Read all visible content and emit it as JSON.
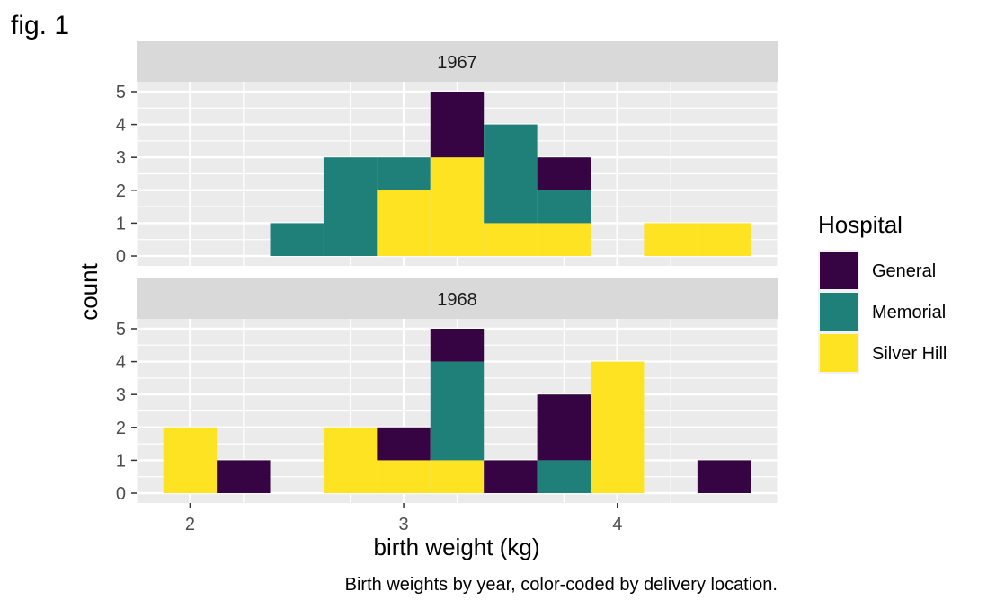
{
  "figure_label": "fig. 1",
  "caption": "Birth weights by year, color-coded by delivery location.",
  "chart_data": {
    "type": "bar",
    "subtype": "stacked-histogram-faceted",
    "xlabel": "birth weight (kg)",
    "ylabel": "count",
    "xlim": [
      1.75,
      4.75
    ],
    "ylim": [
      -0.3,
      5.3
    ],
    "x_ticks": [
      2,
      3,
      4
    ],
    "y_ticks": [
      0,
      1,
      2,
      3,
      4,
      5
    ],
    "bin_width": 0.25,
    "bin_starts": [
      1.875,
      2.125,
      2.375,
      2.625,
      2.875,
      3.125,
      3.375,
      3.625,
      3.875,
      4.125,
      4.375
    ],
    "stack_order": [
      "Silver Hill",
      "Memorial",
      "General"
    ],
    "legend": {
      "title": "Hospital",
      "position": "right",
      "entries": [
        {
          "name": "General",
          "color": "#360343"
        },
        {
          "name": "Memorial",
          "color": "#1f7f79"
        },
        {
          "name": "Silver Hill",
          "color": "#fde321"
        }
      ]
    },
    "panels": [
      {
        "strip": "1967",
        "series": [
          {
            "name": "General",
            "values": [
              0,
              0,
              0,
              0,
              0,
              2,
              0,
              1,
              0,
              0,
              0
            ]
          },
          {
            "name": "Memorial",
            "values": [
              0,
              0,
              1,
              3,
              1,
              0,
              3,
              1,
              0,
              0,
              0
            ]
          },
          {
            "name": "Silver Hill",
            "values": [
              0,
              0,
              0,
              0,
              2,
              3,
              1,
              1,
              0,
              1,
              1
            ]
          }
        ]
      },
      {
        "strip": "1968",
        "series": [
          {
            "name": "General",
            "values": [
              0,
              1,
              0,
              0,
              1,
              1,
              1,
              2,
              0,
              0,
              1
            ]
          },
          {
            "name": "Memorial",
            "values": [
              0,
              0,
              0,
              0,
              0,
              3,
              0,
              1,
              0,
              0,
              0
            ]
          },
          {
            "name": "Silver Hill",
            "values": [
              2,
              0,
              0,
              2,
              1,
              1,
              0,
              0,
              4,
              0,
              0
            ]
          }
        ]
      }
    ]
  }
}
